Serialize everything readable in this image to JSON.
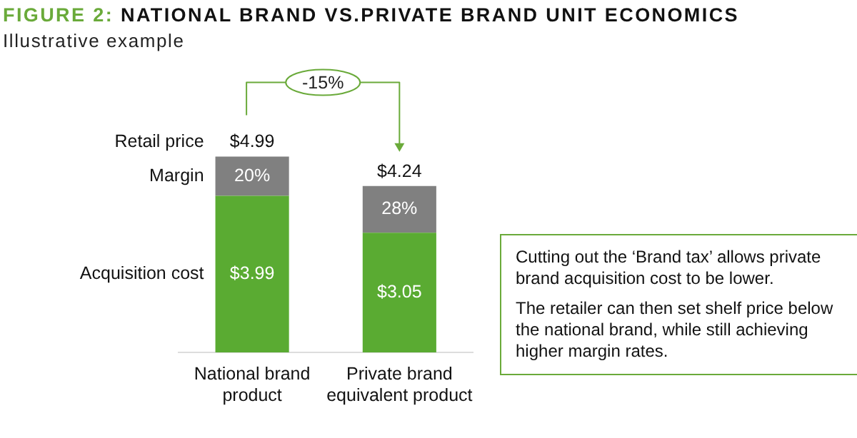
{
  "chart_data": {
    "type": "bar",
    "title": "FIGURE 2: NATIONAL BRAND VS.PRIVATE BRAND UNIT ECONOMICS",
    "subtitle": "Illustrative example",
    "categories": [
      "National brand product",
      "Private brand equivalent product"
    ],
    "stacked": true,
    "series": [
      {
        "name": "Acquisition cost",
        "color": "#5aab32",
        "values": [
          3.99,
          3.05
        ],
        "value_labels": [
          "$3.99",
          "$3.05"
        ]
      },
      {
        "name": "Margin",
        "color": "#808080",
        "values": [
          1.0,
          1.19
        ]
      }
    ],
    "totals": [
      "$4.99",
      "$4.24"
    ],
    "annotations": [
      "Retail price",
      "-15%",
      "20%",
      "28%",
      "Cutting out the ‘Brand tax’ allows private brand acquisition cost to be lower.",
      "The retailer can then set shelf price below the national brand, while still achieving higher margin rates."
    ],
    "grid": false,
    "legend": false
  }
}
